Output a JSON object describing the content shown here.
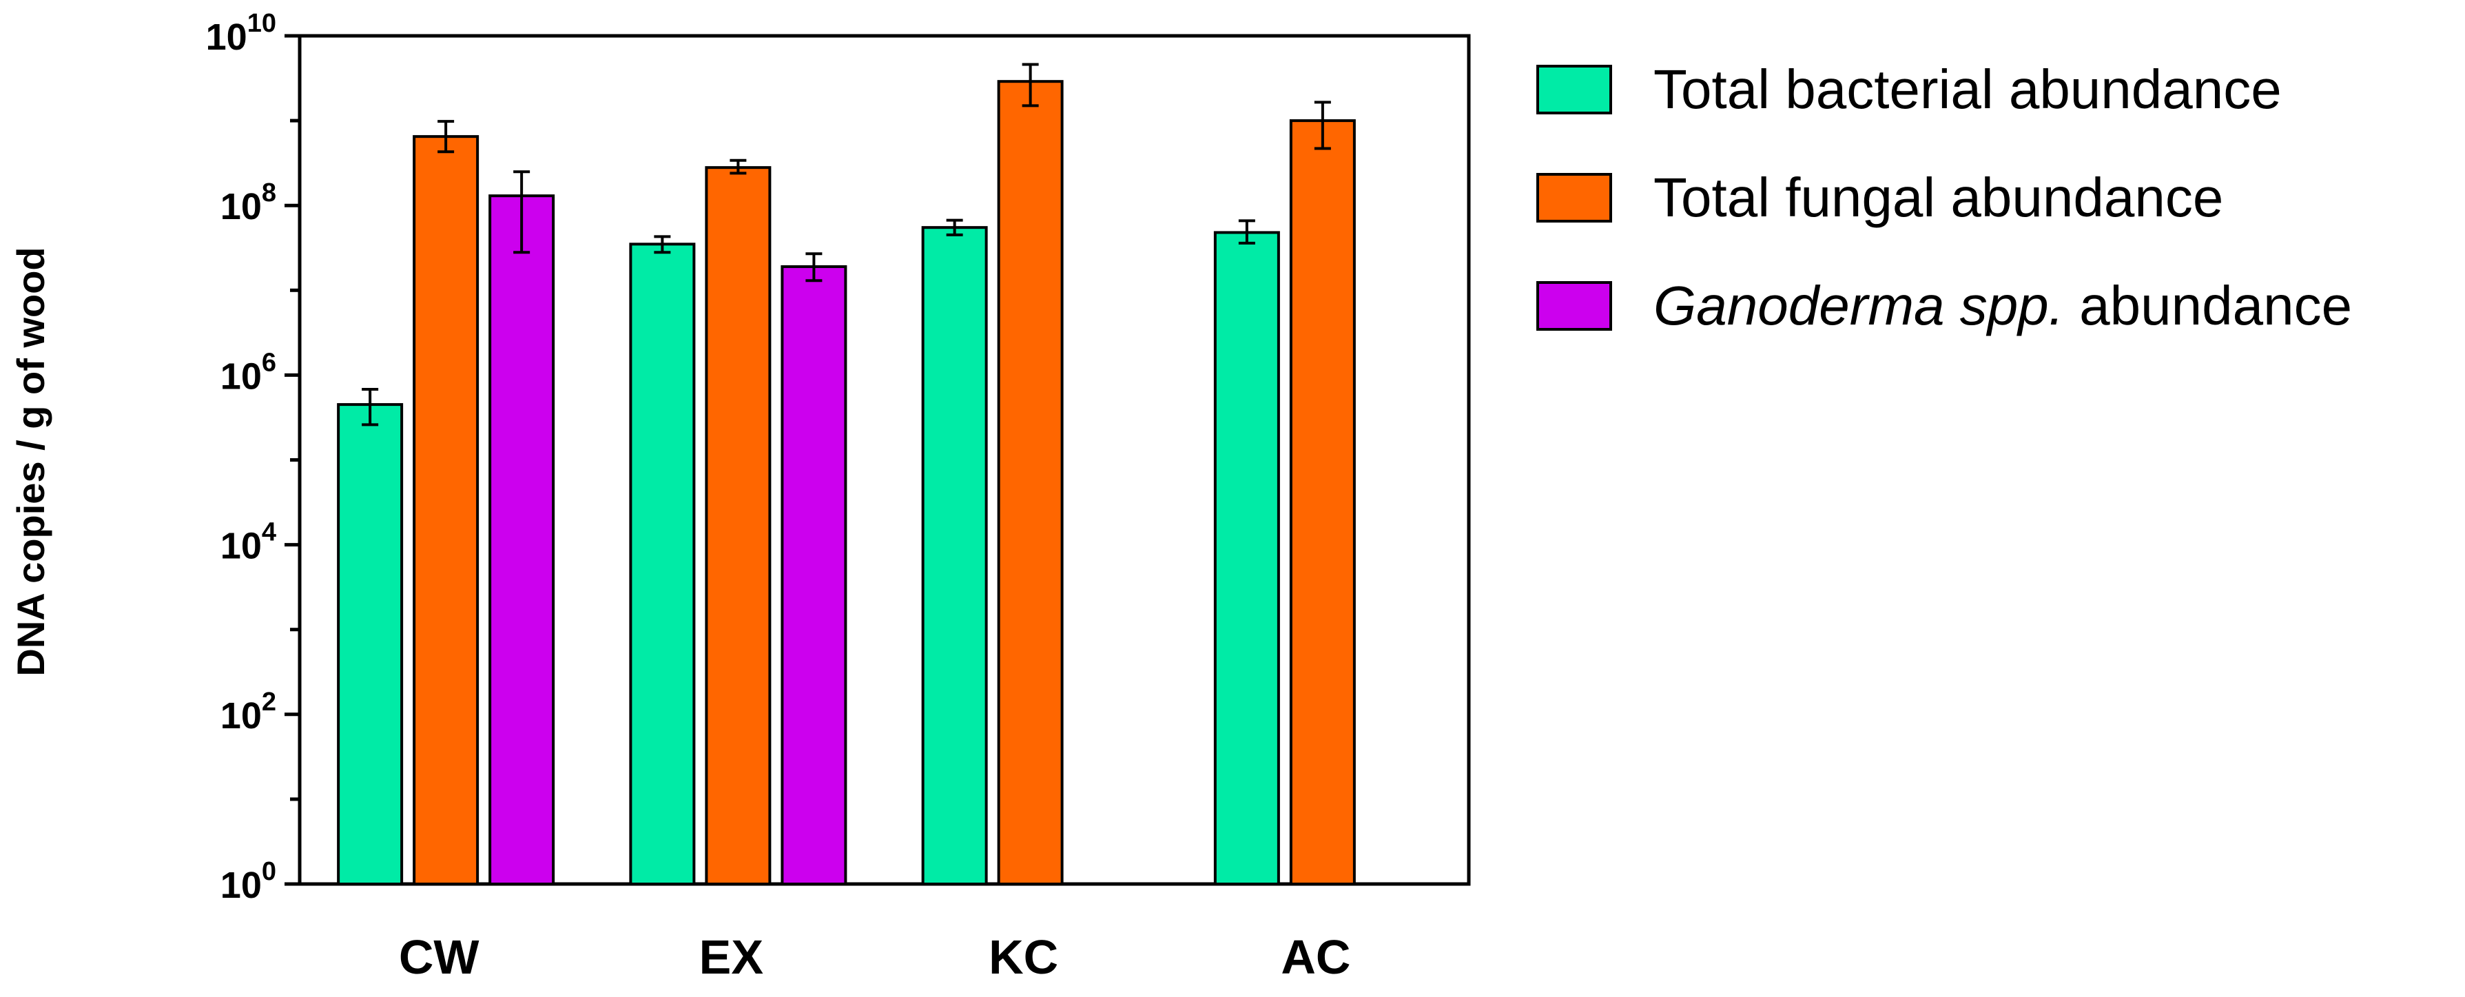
{
  "chart_data": {
    "type": "bar",
    "title": "",
    "xlabel": "",
    "ylabel": "DNA copies / g of wood",
    "y_scale": "log",
    "ylim": [
      1,
      10000000000
    ],
    "y_tick_labels": [
      {
        "base": "10",
        "exp": "0",
        "value": 1
      },
      {
        "base": "10",
        "exp": "2",
        "value": 100
      },
      {
        "base": "10",
        "exp": "4",
        "value": 10000
      },
      {
        "base": "10",
        "exp": "6",
        "value": 1000000
      },
      {
        "base": "10",
        "exp": "8",
        "value": 100000000
      },
      {
        "base": "10",
        "exp": "10",
        "value": 10000000000
      }
    ],
    "categories": [
      "CW",
      "EX",
      "KC",
      "AC"
    ],
    "series": [
      {
        "name": "Total bacterial abundance",
        "name_parts": [
          {
            "text": "Total bacterial abundance",
            "italic": false
          }
        ],
        "color": "#00EBA6",
        "values": [
          450000,
          35000000,
          55000000,
          48000000
        ],
        "error_low": [
          260000,
          28000000,
          45000000,
          36000000
        ],
        "error_high": [
          680000,
          43000000,
          67000000,
          66000000
        ]
      },
      {
        "name": "Total fungal abundance",
        "name_parts": [
          {
            "text": "Total fungal abundance",
            "italic": false
          }
        ],
        "color": "#FF6600",
        "values": [
          650000000,
          280000000,
          2900000000,
          1000000000
        ],
        "error_low": [
          430000000,
          240000000,
          1500000000,
          470000000
        ],
        "error_high": [
          980000000,
          340000000,
          4600000000,
          1650000000
        ]
      },
      {
        "name": "Ganoderma spp. abundance",
        "name_parts": [
          {
            "text": "Ganoderma spp.",
            "italic": true
          },
          {
            "text": " abundance",
            "italic": false
          }
        ],
        "color": "#CC00EE",
        "values": [
          130000000,
          19000000,
          null,
          null
        ],
        "error_low": [
          28000000,
          13000000,
          null,
          null
        ],
        "error_high": [
          250000000,
          27000000,
          null,
          null
        ]
      }
    ],
    "legend_position": "right",
    "grid": false
  }
}
